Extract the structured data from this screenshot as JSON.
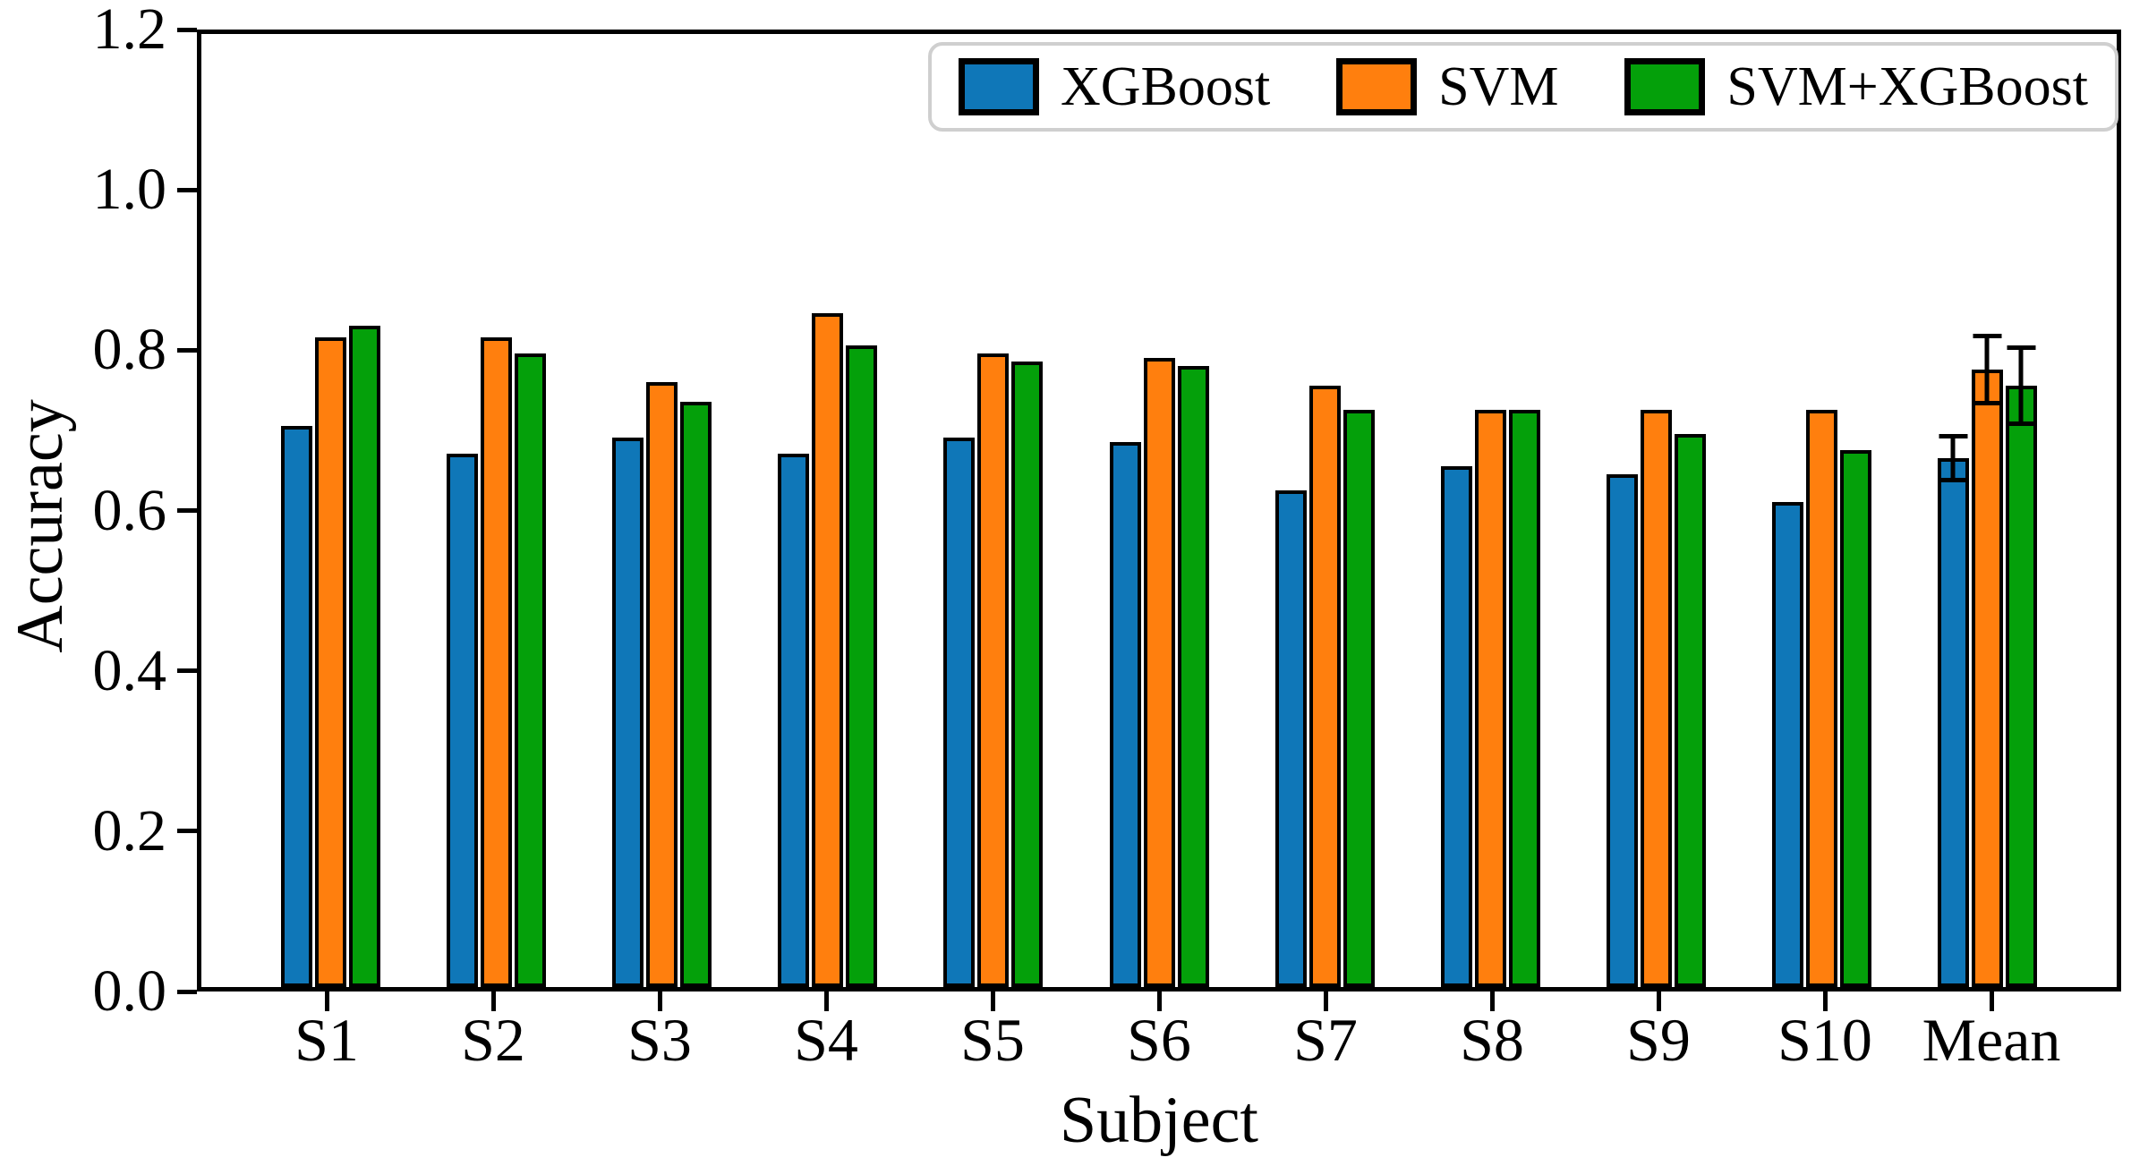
{
  "chart_data": {
    "type": "bar",
    "title": "",
    "xlabel": "Subject",
    "ylabel": "Accuracy",
    "ylim": [
      0.0,
      1.2
    ],
    "yticks": [
      "0.0",
      "0.2",
      "0.4",
      "0.6",
      "0.8",
      "1.0",
      "1.2"
    ],
    "grid": false,
    "legend_position": "upper right",
    "bar_edge_color": "#000000",
    "categories": [
      "S1",
      "S2",
      "S3",
      "S4",
      "S5",
      "S6",
      "S7",
      "S8",
      "S9",
      "S10",
      "Mean"
    ],
    "series": [
      {
        "name": "XGBoost",
        "color": "#0f77b8",
        "values": [
          0.7,
          0.665,
          0.685,
          0.665,
          0.685,
          0.68,
          0.62,
          0.65,
          0.64,
          0.605,
          0.66
        ]
      },
      {
        "name": "SVM",
        "color": "#ff7f0e",
        "values": [
          0.81,
          0.81,
          0.755,
          0.84,
          0.79,
          0.785,
          0.75,
          0.72,
          0.72,
          0.72,
          0.77
        ]
      },
      {
        "name": "SVM+XGBoost",
        "color": "#04a00a",
        "values": [
          0.825,
          0.79,
          0.73,
          0.8,
          0.78,
          0.775,
          0.72,
          0.72,
          0.69,
          0.67,
          0.75
        ]
      }
    ],
    "error_bars": {
      "category": "Mean",
      "per_series": [
        0.03,
        0.045,
        0.05
      ]
    }
  }
}
